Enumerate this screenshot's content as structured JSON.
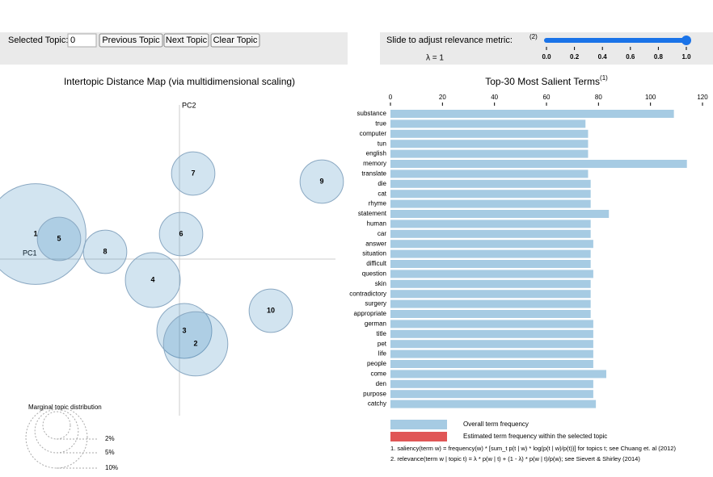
{
  "controls": {
    "selected_label": "Selected Topic:",
    "selected_value": "0",
    "buttons": [
      "Previous Topic",
      "Next Topic",
      "Clear Topic"
    ],
    "slider_label": "Slide to adjust relevance metric:",
    "slider_note": "(2)",
    "lambda_label": "λ = 1",
    "slider_value": 1,
    "slider_lim": [
      0,
      1
    ],
    "slider_ticks": [
      {
        "value": 0,
        "label": "0.0"
      },
      {
        "value": 0.2,
        "label": "0.2"
      },
      {
        "value": 0.4,
        "label": "0.4"
      },
      {
        "value": 0.6,
        "label": "0.6"
      },
      {
        "value": 0.8,
        "label": "0.8"
      },
      {
        "value": 1,
        "label": "1.0"
      }
    ]
  },
  "chart_data": [
    {
      "type": "bubble",
      "title": "Intertopic Distance Map (via multidimensional scaling)",
      "x_label": "PC1",
      "y_label": "PC2",
      "color": "#1f77b4",
      "labels": [
        "1",
        "5",
        "8",
        "4",
        "6",
        "7",
        "9",
        "10",
        "3",
        "2"
      ],
      "x": [
        -0.178,
        -0.149,
        -0.092,
        -0.033,
        0.002,
        0.017,
        0.176,
        0.113,
        0.006,
        0.02
      ],
      "y": [
        0.031,
        0.025,
        0.009,
        -0.026,
        0.031,
        0.106,
        0.096,
        -0.064,
        -0.089,
        -0.105
      ],
      "sizes": [
        27,
        5,
        5,
        8,
        5,
        5,
        5,
        5,
        8,
        11
      ],
      "xlim": [
        -0.222,
        0.193
      ],
      "ylim": [
        -0.194,
        0.196
      ],
      "size_legend_title": "Marginal topic distribution",
      "size_legend": [
        {
          "value": 2,
          "label": "2%"
        },
        {
          "value": 5,
          "label": "5%"
        },
        {
          "value": 10,
          "label": "10%"
        }
      ]
    },
    {
      "type": "barh",
      "title": "Top-30 Most Salient Terms",
      "title_note": "(1)",
      "categories": [
        "substance",
        "true",
        "computer",
        "tun",
        "english",
        "memory",
        "translate",
        "die",
        "cat",
        "rhyme",
        "statement",
        "human",
        "car",
        "answer",
        "situation",
        "difficult",
        "question",
        "skin",
        "contradictory",
        "surgery",
        "appropriate",
        "german",
        "title",
        "pet",
        "life",
        "people",
        "come",
        "den",
        "purpose",
        "catchy"
      ],
      "values": [
        109,
        75,
        76,
        76,
        76,
        114,
        76,
        77,
        77,
        77,
        84,
        77,
        77,
        78,
        77,
        77,
        78,
        77,
        77,
        77,
        77,
        78,
        78,
        78,
        78,
        78,
        83,
        78,
        78,
        79
      ],
      "color": "#a6cbe3",
      "xlim": [
        0,
        120
      ],
      "xticks": [
        0,
        20,
        40,
        60,
        80,
        100,
        120
      ],
      "legend": [
        {
          "name": "Overall term frequency",
          "color": "#a6cbe3"
        },
        {
          "name": "Estimated term frequency within the selected topic",
          "color": "#e05656"
        }
      ],
      "notes": [
        "1. saliency(term w) = frequency(w) * [sum_t p(t | w) * log(p(t | w)/p(t))] for topics t; see Chuang et. al (2012)",
        "2. relevance(term w | topic t) = λ * p(w | t) + (1 - λ) * p(w | t)/p(w); see Sievert & Shirley (2014)"
      ]
    }
  ]
}
